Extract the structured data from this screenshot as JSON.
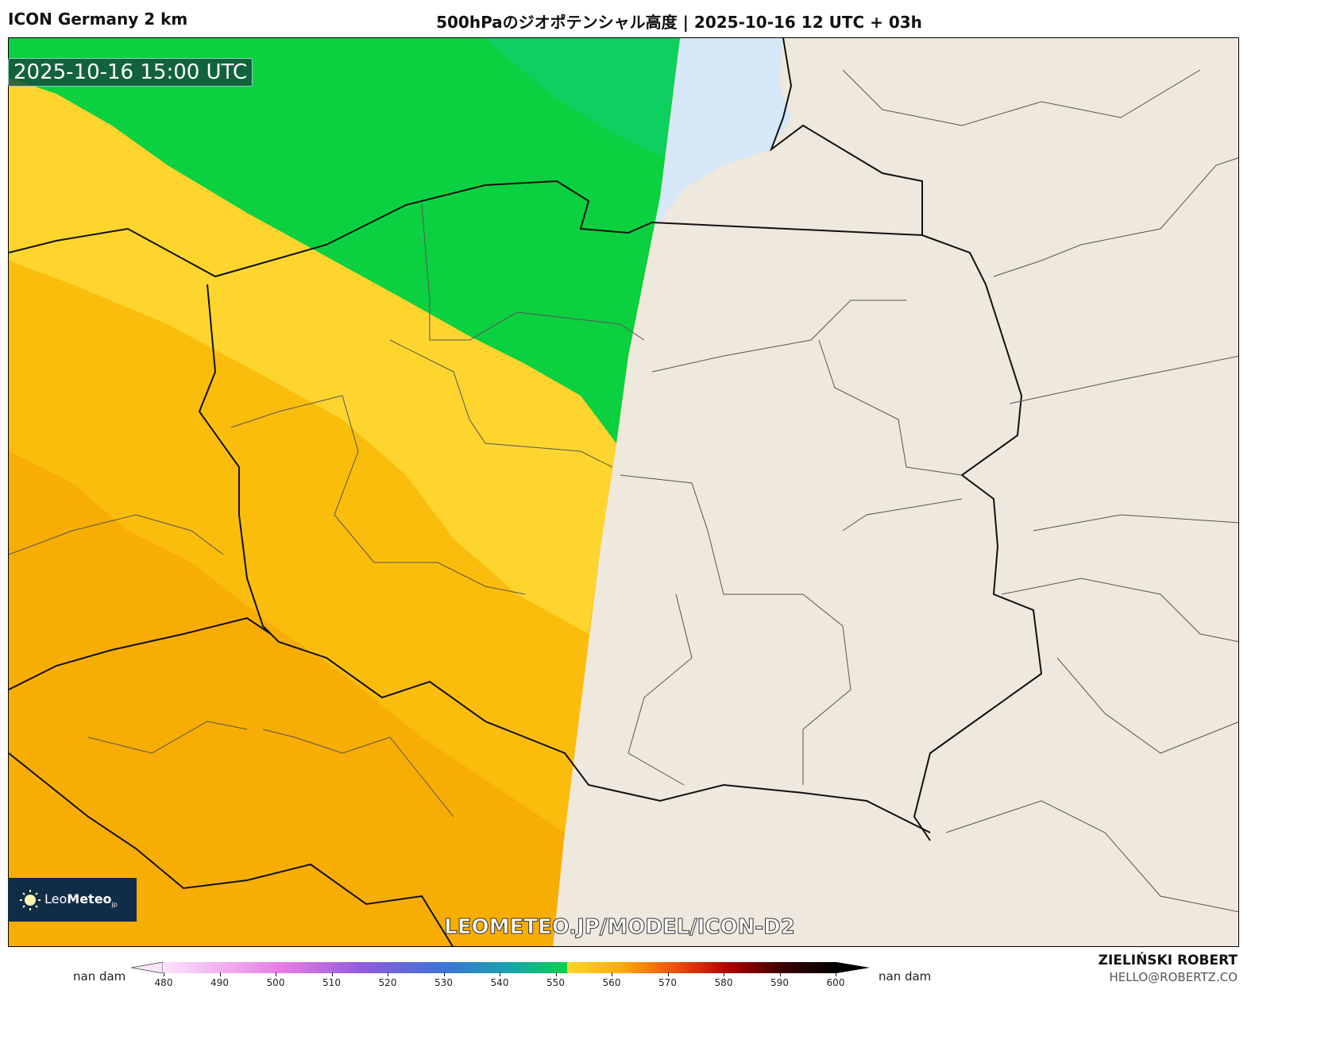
{
  "header": {
    "model": "ICON Germany 2 km",
    "title": "500hPaのジオポテンシャル高度 | 2025-10-16 12 UTC + 03h"
  },
  "map": {
    "valid_time": "2025-10-16 15:00 UTC",
    "watermark": "LEOMETEO.JP/MODEL/ICON-D2",
    "logo": {
      "prefix": "Leo",
      "brand": "Meteo",
      "suffix": "jp"
    },
    "colors": {
      "land": "#efe8dc",
      "water": "#d6e7f7",
      "green_540": "#0fd06e",
      "green_550": "#0bd040",
      "yellow_550": "#fdd52e",
      "orange_560": "#fbbd0c",
      "orange_565": "#f8ad04"
    }
  },
  "colorbar": {
    "unit_left": "nan dam",
    "unit_right": "nan dam",
    "ticks": [
      "480",
      "490",
      "500",
      "510",
      "520",
      "530",
      "540",
      "550",
      "560",
      "570",
      "580",
      "590",
      "600"
    ],
    "range": [
      480,
      600
    ],
    "extend": "both"
  },
  "credit": {
    "author": "ZIELIŃSKI ROBERT",
    "email": "HELLO@ROBERTZ.CO"
  }
}
